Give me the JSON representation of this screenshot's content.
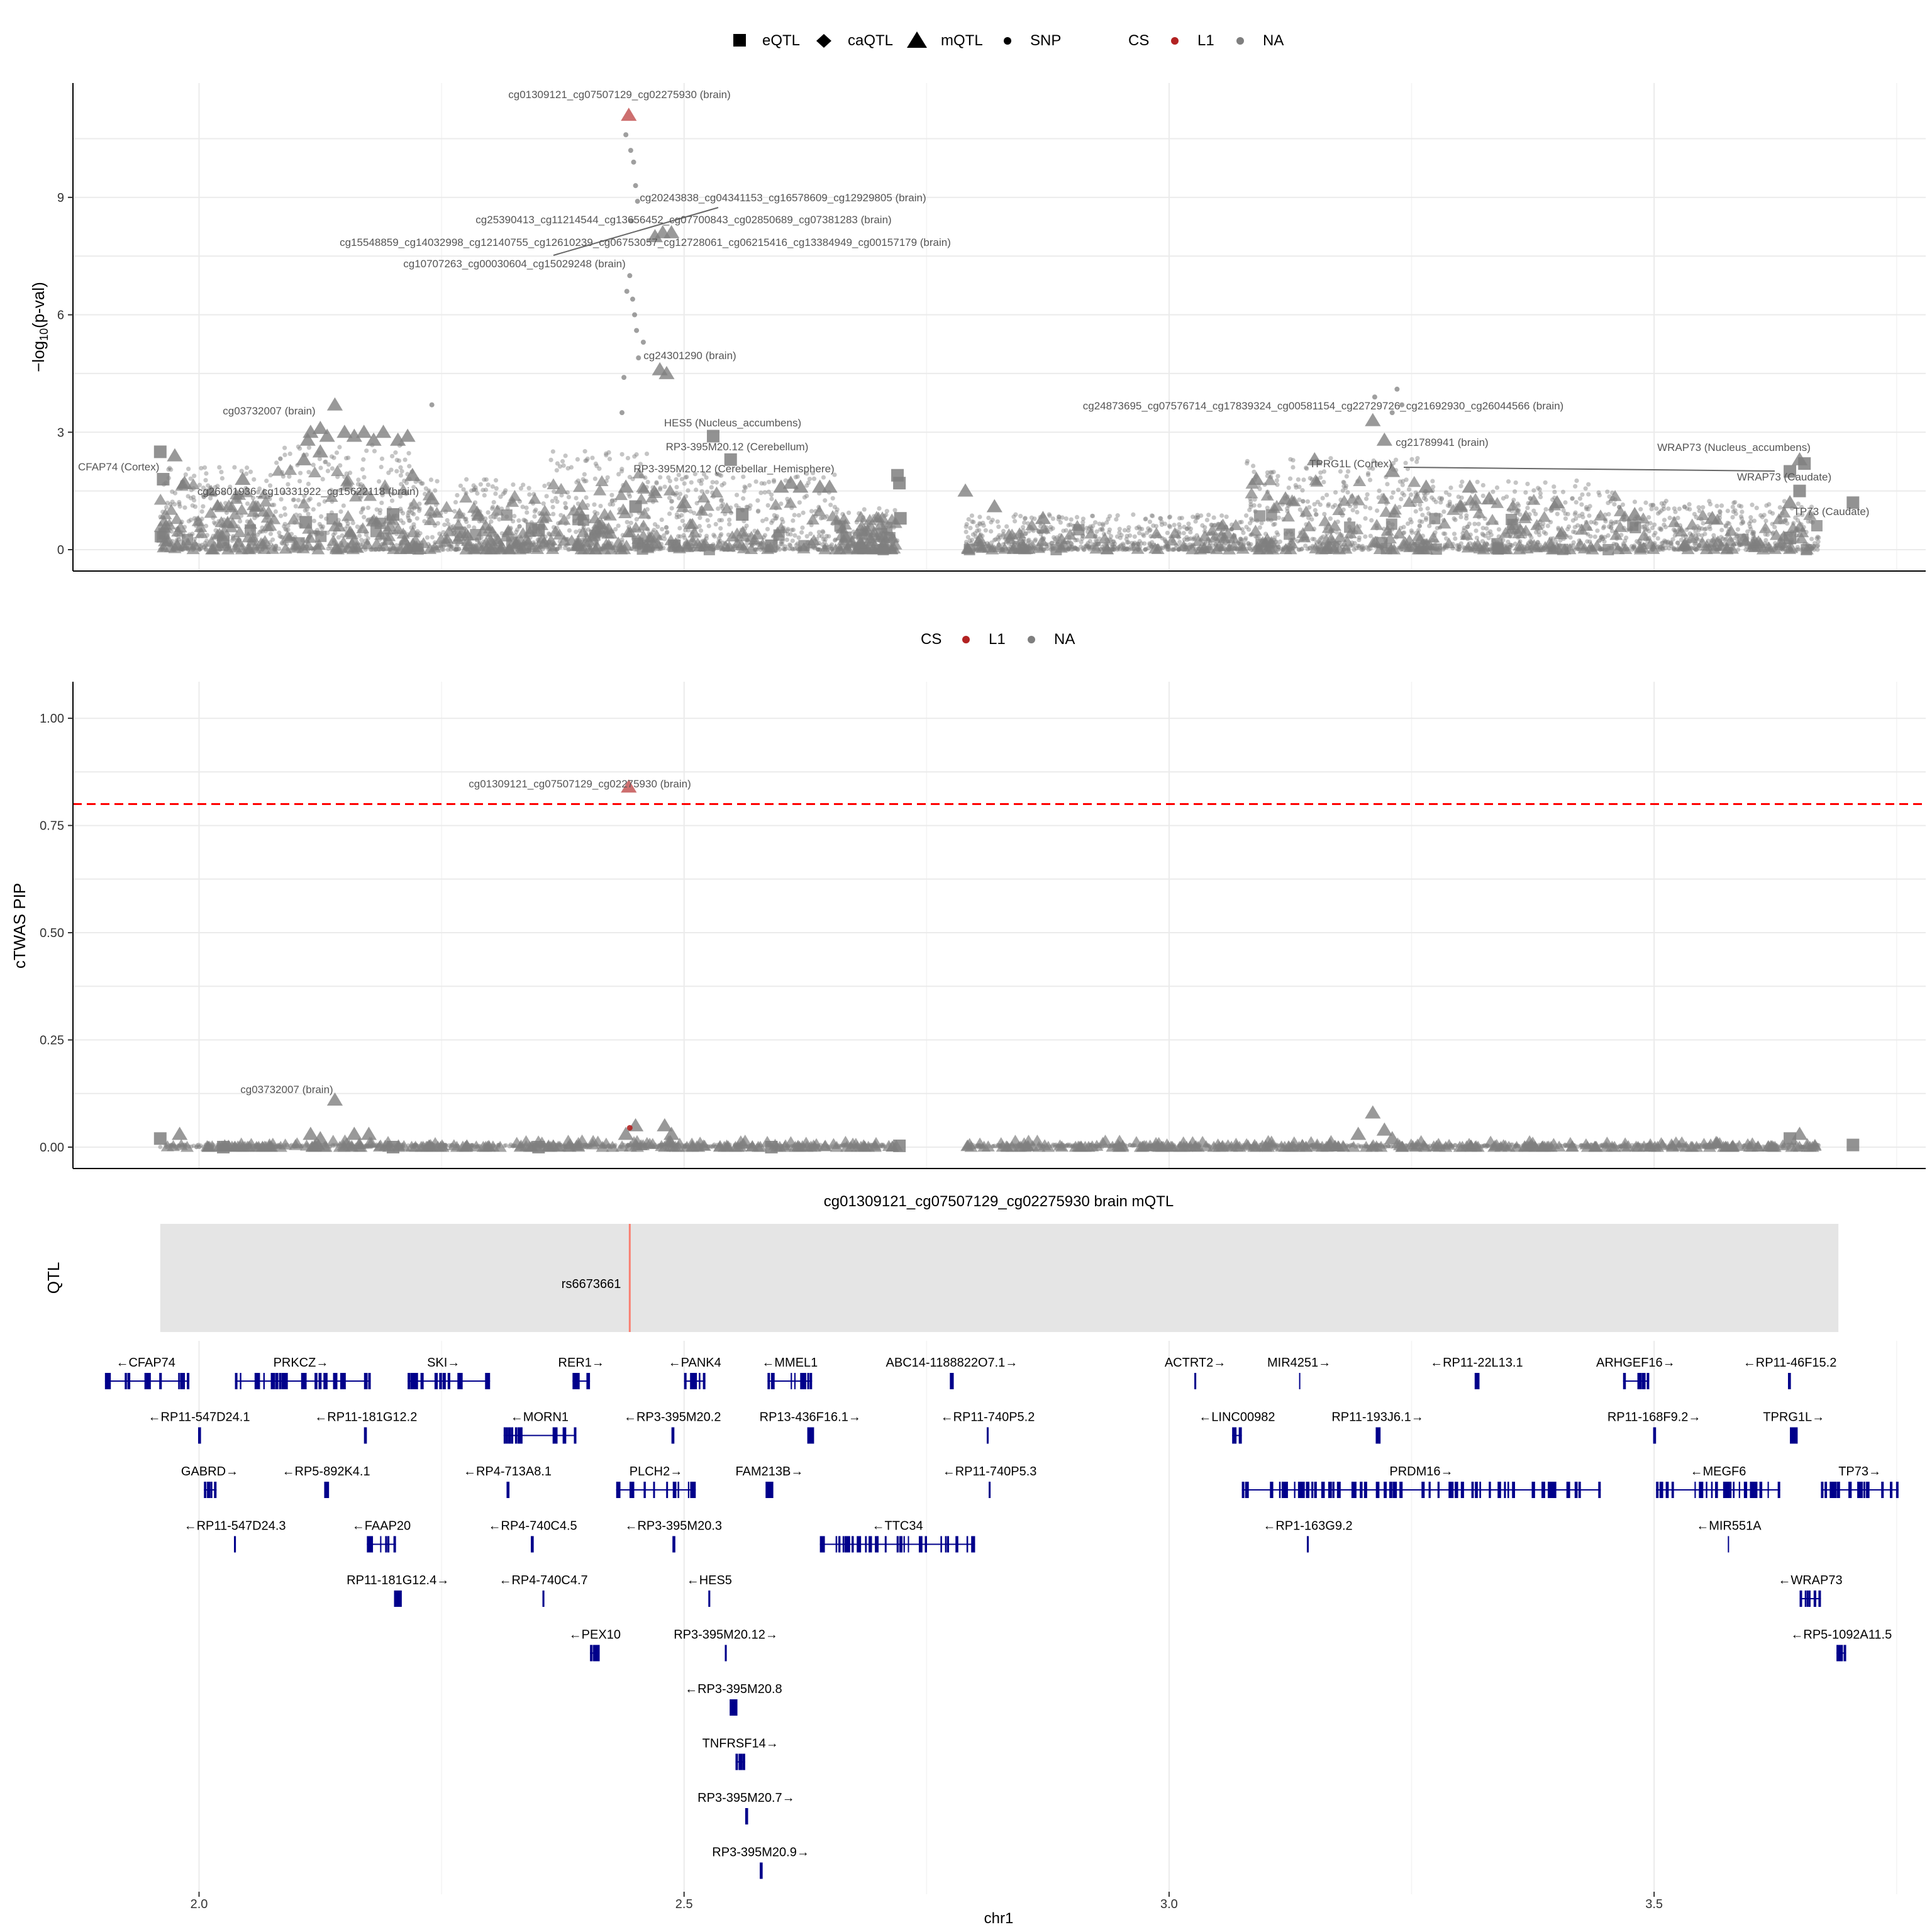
{
  "colors": {
    "cs_l1": "#B22222",
    "na": "#7F7F7F",
    "threshold": "#FF0000",
    "gene": "#00008B",
    "qtl_bg": "#E5E5E5",
    "qtl_line": "#FA8072",
    "label_text": "#555555",
    "grid": "#EBEBEB"
  },
  "chart_data": [
    {
      "type": "scatter",
      "panel": "pvalue",
      "ylabel_main": "−log",
      "ylabel_sub": "10",
      "ylabel_tail": "(p-val)",
      "ylim": [
        0,
        11.6
      ],
      "xlim": [
        1.87,
        3.78
      ],
      "yticks": [
        0,
        3,
        6,
        9
      ],
      "legend": {
        "shape_items": [
          {
            "shape": "square",
            "label": "eQTL"
          },
          {
            "shape": "diamond",
            "label": "caQTL"
          },
          {
            "shape": "triangle",
            "label": "mQTL"
          },
          {
            "shape": "dot",
            "label": "SNP"
          }
        ],
        "cs_title": "CS",
        "cs_items": [
          {
            "label": "L1",
            "color_key": "cs_l1"
          },
          {
            "label": "NA",
            "color_key": "na"
          }
        ]
      },
      "highlight": [
        {
          "x": 2.443,
          "y": 11.1,
          "shape": "triangle",
          "cs": "L1"
        }
      ],
      "significant_snps": [
        {
          "x": 2.44,
          "y": 10.6
        },
        {
          "x": 2.445,
          "y": 10.2
        },
        {
          "x": 2.448,
          "y": 9.9
        },
        {
          "x": 2.45,
          "y": 9.3
        },
        {
          "x": 2.452,
          "y": 8.9
        },
        {
          "x": 2.446,
          "y": 8.4
        },
        {
          "x": 2.444,
          "y": 7.0
        },
        {
          "x": 2.441,
          "y": 6.6
        },
        {
          "x": 2.447,
          "y": 6.4
        },
        {
          "x": 2.449,
          "y": 6.0
        },
        {
          "x": 2.451,
          "y": 5.6
        },
        {
          "x": 2.458,
          "y": 5.3
        },
        {
          "x": 2.453,
          "y": 4.9
        },
        {
          "x": 2.438,
          "y": 4.4
        },
        {
          "x": 2.436,
          "y": 3.5
        },
        {
          "x": 3.235,
          "y": 4.1
        },
        {
          "x": 3.24,
          "y": 3.7
        },
        {
          "x": 3.23,
          "y": 3.5
        },
        {
          "x": 3.212,
          "y": 3.9
        },
        {
          "x": 2.24,
          "y": 3.7
        }
      ],
      "mqtl": [
        {
          "x": 2.112,
          "y": 2.8
        },
        {
          "x": 2.115,
          "y": 3.0
        },
        {
          "x": 2.125,
          "y": 3.1
        },
        {
          "x": 2.132,
          "y": 2.9
        },
        {
          "x": 2.14,
          "y": 3.7
        },
        {
          "x": 2.15,
          "y": 3.0
        },
        {
          "x": 2.16,
          "y": 2.9
        },
        {
          "x": 2.17,
          "y": 3.0
        },
        {
          "x": 2.18,
          "y": 2.8
        },
        {
          "x": 2.19,
          "y": 3.0
        },
        {
          "x": 2.205,
          "y": 2.8
        },
        {
          "x": 2.215,
          "y": 2.9
        },
        {
          "x": 2.108,
          "y": 2.3
        },
        {
          "x": 2.125,
          "y": 2.5
        },
        {
          "x": 1.975,
          "y": 2.4
        },
        {
          "x": 1.985,
          "y": 1.7
        },
        {
          "x": 2.045,
          "y": 1.8
        },
        {
          "x": 2.22,
          "y": 1.9
        },
        {
          "x": 2.24,
          "y": 1.3
        },
        {
          "x": 2.47,
          "y": 8.0
        },
        {
          "x": 2.478,
          "y": 8.1
        },
        {
          "x": 2.487,
          "y": 8.1
        },
        {
          "x": 2.475,
          "y": 4.6
        },
        {
          "x": 2.482,
          "y": 4.5
        },
        {
          "x": 2.44,
          "y": 1.6
        },
        {
          "x": 2.5,
          "y": 1.2
        },
        {
          "x": 2.6,
          "y": 1.6
        },
        {
          "x": 2.61,
          "y": 1.7
        },
        {
          "x": 2.62,
          "y": 1.6
        },
        {
          "x": 2.64,
          "y": 1.6
        },
        {
          "x": 2.65,
          "y": 1.6
        },
        {
          "x": 2.79,
          "y": 1.5
        },
        {
          "x": 2.82,
          "y": 1.1
        },
        {
          "x": 2.87,
          "y": 0.8
        },
        {
          "x": 3.09,
          "y": 1.8
        },
        {
          "x": 3.12,
          "y": 1.3
        },
        {
          "x": 3.15,
          "y": 2.3
        },
        {
          "x": 3.21,
          "y": 3.3
        },
        {
          "x": 3.222,
          "y": 2.8
        },
        {
          "x": 3.23,
          "y": 2.0
        },
        {
          "x": 3.265,
          "y": 1.6
        },
        {
          "x": 3.3,
          "y": 1.1
        },
        {
          "x": 3.31,
          "y": 1.6
        },
        {
          "x": 3.33,
          "y": 1.3
        },
        {
          "x": 3.4,
          "y": 1.2
        },
        {
          "x": 3.48,
          "y": 0.9
        },
        {
          "x": 3.56,
          "y": 0.8
        },
        {
          "x": 3.64,
          "y": 1.2
        },
        {
          "x": 3.65,
          "y": 2.3
        }
      ],
      "eqtl": [
        {
          "x": 1.96,
          "y": 2.5
        },
        {
          "x": 1.963,
          "y": 1.8
        },
        {
          "x": 2.025,
          "y": 0.2
        },
        {
          "x": 2.11,
          "y": 0.7
        },
        {
          "x": 2.2,
          "y": 0.9
        },
        {
          "x": 2.35,
          "y": 0.5
        },
        {
          "x": 2.45,
          "y": 1.1
        },
        {
          "x": 2.49,
          "y": 0.1
        },
        {
          "x": 2.53,
          "y": 2.9
        },
        {
          "x": 2.548,
          "y": 2.3
        },
        {
          "x": 2.56,
          "y": 0.9
        },
        {
          "x": 2.59,
          "y": 0.1
        },
        {
          "x": 2.72,
          "y": 1.9
        },
        {
          "x": 2.722,
          "y": 1.7
        },
        {
          "x": 2.723,
          "y": 0.8
        },
        {
          "x": 3.64,
          "y": 2.0
        },
        {
          "x": 3.655,
          "y": 2.2
        },
        {
          "x": 3.65,
          "y": 1.5
        },
        {
          "x": 3.705,
          "y": 1.2
        },
        {
          "x": 3.64,
          "y": 0.3
        }
      ],
      "labels": [
        {
          "x": 2.443,
          "y": 11.1,
          "text": "cg01309121_cg07507129_cg02275930 (brain)"
        },
        {
          "x": 2.48,
          "y": 8.1,
          "text": "cg20243838_cg04341153_cg16578609_cg12929805 (brain)"
        },
        {
          "x": 2.48,
          "y": 8.1,
          "text": "cg25390413_cg11214544_cg13656452_cg07700843_cg02850689_cg07381283 (brain)"
        },
        {
          "x": 2.48,
          "y": 8.1,
          "text": "cg15548859_cg14032998_cg12140755_cg12610239_cg06753057_cg12728061_cg06215416_cg13384949_cg00157179 (brain)"
        },
        {
          "x": 2.48,
          "y": 8.1,
          "text": "cg10707263_cg00030604_cg15029248 (brain)"
        },
        {
          "x": 2.478,
          "y": 4.6,
          "text": "cg24301290 (brain)"
        },
        {
          "x": 2.14,
          "y": 3.7,
          "text": "cg03732007 (brain)"
        },
        {
          "x": 2.53,
          "y": 2.9,
          "text": "HES5 (Nucleus_accumbens)"
        },
        {
          "x": 2.548,
          "y": 2.3,
          "text": "RP3-395M20.12 (Cerebellum)"
        },
        {
          "x": 2.548,
          "y": 2.3,
          "text": "RP3-395M20.12 (Cerebellar_Hemisphere)"
        },
        {
          "x": 3.21,
          "y": 3.3,
          "text": "cg24873695_cg07576714_cg17839324_cg00581154_cg22729726_cg21692930_cg26044566 (brain)"
        },
        {
          "x": 3.225,
          "y": 2.8,
          "text": "cg21789941 (brain)"
        },
        {
          "x": 1.96,
          "y": 2.5,
          "text": "CFAP74 (Cortex)"
        },
        {
          "x": 2.045,
          "y": 1.8,
          "text": "cg26801936_cg10331922_cg15622118 (brain)"
        },
        {
          "x": 3.655,
          "y": 2.2,
          "text": "WRAP73 (Nucleus_accumbens)"
        },
        {
          "x": 3.64,
          "y": 2.0,
          "text": "TPRG1L (Cortex)"
        },
        {
          "x": 3.65,
          "y": 1.5,
          "text": "WRAP73 (Caudate)"
        },
        {
          "x": 3.705,
          "y": 1.2,
          "text": "TP73 (Caudate)"
        }
      ]
    },
    {
      "type": "scatter",
      "panel": "pip",
      "ylabel": "cTWAS PIP",
      "ylim": [
        0,
        1.05
      ],
      "xlim": [
        1.87,
        3.78
      ],
      "yticks": [
        "0.00",
        "0.25",
        "0.50",
        "0.75",
        "1.00"
      ],
      "threshold": 0.8,
      "legend": {
        "cs_title": "CS",
        "cs_items": [
          {
            "label": "L1",
            "color_key": "cs_l1"
          },
          {
            "label": "NA",
            "color_key": "na"
          }
        ]
      },
      "highlight": [
        {
          "x": 2.443,
          "y": 0.84,
          "shape": "triangle",
          "cs": "L1"
        },
        {
          "x": 2.444,
          "y": 0.045,
          "shape": "dot",
          "cs": "L1"
        }
      ],
      "mqtl": [
        {
          "x": 1.98,
          "y": 0.03
        },
        {
          "x": 2.14,
          "y": 0.11
        },
        {
          "x": 2.115,
          "y": 0.03
        },
        {
          "x": 2.16,
          "y": 0.03
        },
        {
          "x": 2.175,
          "y": 0.03
        },
        {
          "x": 2.125,
          "y": 0.02
        },
        {
          "x": 2.45,
          "y": 0.05
        },
        {
          "x": 2.48,
          "y": 0.05
        },
        {
          "x": 2.487,
          "y": 0.03
        },
        {
          "x": 2.44,
          "y": 0.03
        },
        {
          "x": 3.21,
          "y": 0.08
        },
        {
          "x": 3.195,
          "y": 0.03
        },
        {
          "x": 3.222,
          "y": 0.04
        },
        {
          "x": 3.23,
          "y": 0.02
        },
        {
          "x": 3.65,
          "y": 0.03
        }
      ],
      "eqtl": [
        {
          "x": 1.96,
          "y": 0.02
        },
        {
          "x": 2.025,
          "y": 0.0
        },
        {
          "x": 2.2,
          "y": 0.0
        },
        {
          "x": 2.35,
          "y": 0.0
        },
        {
          "x": 2.59,
          "y": 0.0
        },
        {
          "x": 2.722,
          "y": 0.003
        },
        {
          "x": 3.64,
          "y": 0.02
        },
        {
          "x": 3.705,
          "y": 0.005
        }
      ],
      "labels": [
        {
          "x": 2.443,
          "y": 0.84,
          "text": "cg01309121_cg07507129_cg02275930 (brain)"
        },
        {
          "x": 2.14,
          "y": 0.11,
          "text": "cg03732007 (brain)"
        }
      ]
    }
  ],
  "qtl_track": {
    "title": "cg01309121_cg07507129_cg02275930 brain mQTL",
    "ylabel": "QTL",
    "x_start": 1.96,
    "x_end": 3.69,
    "snp": {
      "label": "rs6673661",
      "x": 2.444
    }
  },
  "genes": [
    {
      "label": "←CFAP74",
      "row": 0,
      "start": 1.903,
      "end": 1.99,
      "lx": 1.945
    },
    {
      "label": "PRKCZ→",
      "row": 0,
      "start": 2.037,
      "end": 2.177,
      "lx": 2.105
    },
    {
      "label": "SKI→",
      "row": 0,
      "start": 2.215,
      "end": 2.3,
      "lx": 2.252
    },
    {
      "label": "RER1→",
      "row": 0,
      "start": 2.385,
      "end": 2.403,
      "lx": 2.394
    },
    {
      "label": "←PANK4",
      "row": 0,
      "start": 2.5,
      "end": 2.522,
      "lx": 2.511
    },
    {
      "label": "←MMEL1",
      "row": 0,
      "start": 2.586,
      "end": 2.632,
      "lx": 2.609
    },
    {
      "label": "ABC14-1188822O7.1→",
      "row": 0,
      "start": 2.774,
      "end": 2.778,
      "lx": 2.776
    },
    {
      "label": "ACTRT2→",
      "row": 0,
      "start": 3.026,
      "end": 3.028,
      "lx": 3.027
    },
    {
      "label": "MIR4251→",
      "row": 0,
      "start": 3.134,
      "end": 3.135,
      "lx": 3.134
    },
    {
      "label": "←RP11-22L13.1",
      "row": 0,
      "start": 3.315,
      "end": 3.32,
      "lx": 3.317
    },
    {
      "label": "ARHGEF16→",
      "row": 0,
      "start": 3.468,
      "end": 3.495,
      "lx": 3.481
    },
    {
      "label": "←RP11-46F15.2",
      "row": 0,
      "start": 3.638,
      "end": 3.641,
      "lx": 3.64
    },
    {
      "label": "←RP11-547D24.1",
      "row": 1,
      "start": 1.999,
      "end": 2.002,
      "lx": 2.0
    },
    {
      "label": "←RP11-181G12.2",
      "row": 1,
      "start": 2.17,
      "end": 2.173,
      "lx": 2.172
    },
    {
      "label": "←MORN1",
      "row": 1,
      "start": 2.314,
      "end": 2.389,
      "lx": 2.351
    },
    {
      "label": "←RP3-395M20.2",
      "row": 1,
      "start": 2.487,
      "end": 2.49,
      "lx": 2.488
    },
    {
      "label": "RP13-436F16.1→",
      "row": 1,
      "start": 2.627,
      "end": 2.634,
      "lx": 2.63
    },
    {
      "label": "←RP11-740P5.2",
      "row": 1,
      "start": 2.812,
      "end": 2.814,
      "lx": 2.813
    },
    {
      "label": "←LINC00982",
      "row": 1,
      "start": 3.065,
      "end": 3.075,
      "lx": 3.07
    },
    {
      "label": "RP11-193J6.1→",
      "row": 1,
      "start": 3.213,
      "end": 3.218,
      "lx": 3.215
    },
    {
      "label": "RP11-168F9.2→",
      "row": 1,
      "start": 3.499,
      "end": 3.502,
      "lx": 3.5
    },
    {
      "label": "TPRG1L→",
      "row": 1,
      "start": 3.64,
      "end": 3.648,
      "lx": 3.644
    },
    {
      "label": "GABRD→",
      "row": 2,
      "start": 2.005,
      "end": 2.018,
      "lx": 2.011
    },
    {
      "label": "←RP5-892K4.1",
      "row": 2,
      "start": 2.129,
      "end": 2.134,
      "lx": 2.131
    },
    {
      "label": "←RP4-713A8.1",
      "row": 2,
      "start": 2.317,
      "end": 2.32,
      "lx": 2.318
    },
    {
      "label": "PLCH2→",
      "row": 2,
      "start": 2.43,
      "end": 2.512,
      "lx": 2.471
    },
    {
      "label": "FAM213B→",
      "row": 2,
      "start": 2.584,
      "end": 2.592,
      "lx": 2.588
    },
    {
      "label": "←RP11-740P5.3",
      "row": 2,
      "start": 2.814,
      "end": 2.816,
      "lx": 2.815
    },
    {
      "label": "PRDM16→",
      "row": 2,
      "start": 3.075,
      "end": 3.445,
      "lx": 3.26
    },
    {
      "label": "←MEGF6",
      "row": 2,
      "start": 3.502,
      "end": 3.63,
      "lx": 3.566
    },
    {
      "label": "TP73→",
      "row": 2,
      "start": 3.672,
      "end": 3.752,
      "lx": 3.712
    },
    {
      "label": "←RP11-547D24.3",
      "row": 3,
      "start": 2.036,
      "end": 2.038,
      "lx": 2.037
    },
    {
      "label": "←FAAP20",
      "row": 3,
      "start": 2.173,
      "end": 2.203,
      "lx": 2.188
    },
    {
      "label": "←RP4-740C4.5",
      "row": 3,
      "start": 2.342,
      "end": 2.345,
      "lx": 2.344
    },
    {
      "label": "←RP3-395M20.3",
      "row": 3,
      "start": 2.488,
      "end": 2.491,
      "lx": 2.489
    },
    {
      "label": "←TTC34",
      "row": 3,
      "start": 2.64,
      "end": 2.8,
      "lx": 2.72
    },
    {
      "label": "←RP1-163G9.2",
      "row": 3,
      "start": 3.142,
      "end": 3.144,
      "lx": 3.143
    },
    {
      "label": "←MIR551A",
      "row": 3,
      "start": 3.576,
      "end": 3.577,
      "lx": 3.577
    },
    {
      "label": "RP11-181G12.4→",
      "row": 4,
      "start": 2.201,
      "end": 2.209,
      "lx": 2.205
    },
    {
      "label": "←RP4-740C4.7",
      "row": 4,
      "start": 2.354,
      "end": 2.356,
      "lx": 2.355
    },
    {
      "label": "←HES5",
      "row": 4,
      "start": 2.525,
      "end": 2.527,
      "lx": 2.526
    },
    {
      "label": "←WRAP73",
      "row": 4,
      "start": 3.65,
      "end": 3.672,
      "lx": 3.661
    },
    {
      "label": "←PEX10",
      "row": 5,
      "start": 2.403,
      "end": 2.413,
      "lx": 2.408
    },
    {
      "label": "RP3-395M20.12→",
      "row": 5,
      "start": 2.542,
      "end": 2.544,
      "lx": 2.543
    },
    {
      "label": "←RP5-1092A11.5",
      "row": 5,
      "start": 3.688,
      "end": 3.698,
      "lx": 3.693
    },
    {
      "label": "←RP3-395M20.8",
      "row": 6,
      "start": 2.547,
      "end": 2.555,
      "lx": 2.551
    },
    {
      "label": "TNFRSF14→",
      "row": 7,
      "start": 2.553,
      "end": 2.563,
      "lx": 2.558
    },
    {
      "label": "RP3-395M20.7→",
      "row": 8,
      "start": 2.563,
      "end": 2.566,
      "lx": 2.564
    },
    {
      "label": "RP3-395M20.9→",
      "row": 9,
      "start": 2.578,
      "end": 2.581,
      "lx": 2.579
    }
  ],
  "x_axis": {
    "title": "chr1",
    "ticks": [
      "2.0",
      "2.5",
      "3.0",
      "3.5"
    ],
    "tick_values": [
      2.0,
      2.5,
      3.0,
      3.5
    ],
    "minor_values": [
      2.25,
      2.75,
      3.25,
      3.75
    ]
  }
}
